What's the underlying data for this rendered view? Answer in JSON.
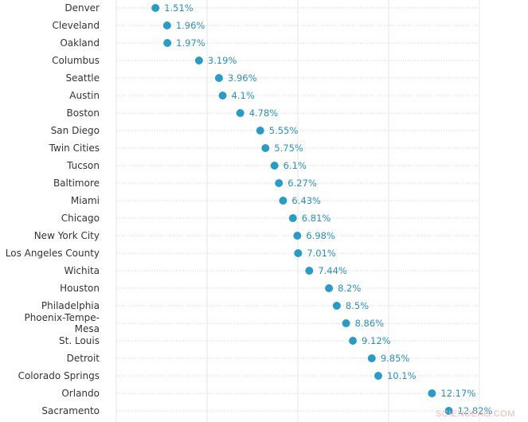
{
  "watermark": "SCIENCEAG.COM",
  "chart_data": {
    "type": "scatter",
    "orientation": "horizontal-dot",
    "title": "",
    "xlabel": "",
    "ylabel": "",
    "grid": true,
    "xlim": [
      0,
      14
    ],
    "x_gridlines": [
      0,
      3.5,
      7,
      10.5,
      14
    ],
    "dot_color": "#2a9bc4",
    "label_color": "#2a8fbd",
    "points": [
      {
        "category": "Denver",
        "value": 1.51,
        "label": "1.51%"
      },
      {
        "category": "Cleveland",
        "value": 1.96,
        "label": "1.96%"
      },
      {
        "category": "Oakland",
        "value": 1.97,
        "label": "1.97%"
      },
      {
        "category": "Columbus",
        "value": 3.19,
        "label": "3.19%"
      },
      {
        "category": "Seattle",
        "value": 3.96,
        "label": "3.96%"
      },
      {
        "category": "Austin",
        "value": 4.1,
        "label": "4.1%"
      },
      {
        "category": "Boston",
        "value": 4.78,
        "label": "4.78%"
      },
      {
        "category": "San Diego",
        "value": 5.55,
        "label": "5.55%"
      },
      {
        "category": "Twin Cities",
        "value": 5.75,
        "label": "5.75%"
      },
      {
        "category": "Tucson",
        "value": 6.1,
        "label": "6.1%"
      },
      {
        "category": "Baltimore",
        "value": 6.27,
        "label": "6.27%"
      },
      {
        "category": "Miami",
        "value": 6.43,
        "label": "6.43%"
      },
      {
        "category": "Chicago",
        "value": 6.81,
        "label": "6.81%"
      },
      {
        "category": "New York City",
        "value": 6.98,
        "label": "6.98%"
      },
      {
        "category": "Los Angeles County",
        "value": 7.01,
        "label": "7.01%"
      },
      {
        "category": "Wichita",
        "value": 7.44,
        "label": "7.44%"
      },
      {
        "category": "Houston",
        "value": 8.2,
        "label": "8.2%"
      },
      {
        "category": "Philadelphia",
        "value": 8.5,
        "label": "8.5%"
      },
      {
        "category": "Phoenix-Tempe-Mesa",
        "value": 8.86,
        "label": "8.86%",
        "category_lines": [
          "Phoenix-Tempe-",
          "Mesa"
        ]
      },
      {
        "category": "St. Louis",
        "value": 9.12,
        "label": "9.12%"
      },
      {
        "category": "Detroit",
        "value": 9.85,
        "label": "9.85%"
      },
      {
        "category": "Colorado Springs",
        "value": 10.1,
        "label": "10.1%"
      },
      {
        "category": "Orlando",
        "value": 12.17,
        "label": "12.17%"
      },
      {
        "category": "Sacramento",
        "value": 12.82,
        "label": "12.82%"
      }
    ]
  }
}
